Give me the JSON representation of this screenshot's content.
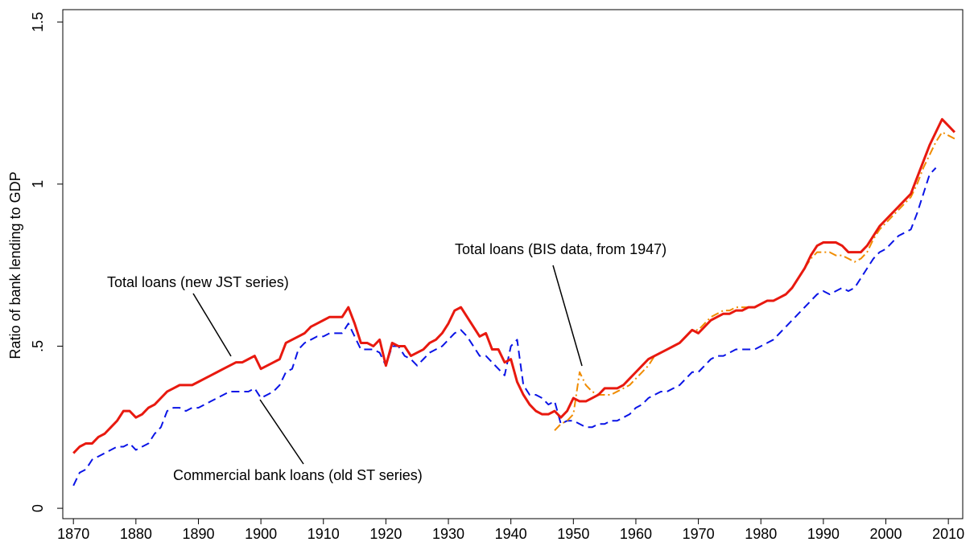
{
  "chart_data": {
    "type": "line",
    "y_label": "Ratio of bank lending to GDP",
    "xlim": [
      1868.3,
      2012.3
    ],
    "ylim": [
      -0.032,
      1.538
    ],
    "xticks": [
      1870,
      1880,
      1890,
      1900,
      1910,
      1920,
      1930,
      1940,
      1950,
      1960,
      1970,
      1980,
      1990,
      2000,
      2010
    ],
    "yticks": [
      0,
      {
        "value": 0.5,
        "label": ".5"
      },
      1,
      1.5
    ],
    "grid": false,
    "annotations": [
      "Total loans (new JST series)",
      "Commercial bank loans (old ST series)",
      "Total loans (BIS data, from 1947)"
    ],
    "x": [
      1870,
      1871,
      1872,
      1873,
      1874,
      1875,
      1876,
      1877,
      1878,
      1879,
      1880,
      1881,
      1882,
      1883,
      1884,
      1885,
      1886,
      1887,
      1888,
      1889,
      1890,
      1891,
      1892,
      1893,
      1894,
      1895,
      1896,
      1897,
      1898,
      1899,
      1900,
      1901,
      1902,
      1903,
      1904,
      1905,
      1906,
      1907,
      1908,
      1909,
      1910,
      1911,
      1912,
      1913,
      1914,
      1915,
      1916,
      1917,
      1918,
      1919,
      1920,
      1921,
      1922,
      1923,
      1924,
      1925,
      1926,
      1927,
      1928,
      1929,
      1930,
      1931,
      1932,
      1933,
      1934,
      1935,
      1936,
      1937,
      1938,
      1939,
      1940,
      1941,
      1942,
      1943,
      1944,
      1945,
      1946,
      1947,
      1948,
      1949,
      1950,
      1951,
      1952,
      1953,
      1954,
      1955,
      1956,
      1957,
      1958,
      1959,
      1960,
      1961,
      1962,
      1963,
      1964,
      1965,
      1966,
      1967,
      1968,
      1969,
      1970,
      1971,
      1972,
      1973,
      1974,
      1975,
      1976,
      1977,
      1978,
      1979,
      1980,
      1981,
      1982,
      1983,
      1984,
      1985,
      1986,
      1987,
      1988,
      1989,
      1990,
      1991,
      1992,
      1993,
      1994,
      1995,
      1996,
      1997,
      1998,
      1999,
      2000,
      2001,
      2002,
      2003,
      2004,
      2005,
      2006,
      2007,
      2008,
      2009,
      2010,
      2011
    ],
    "series": [
      {
        "color": "#0a14e6",
        "dash": "10,6",
        "values": [
          0.07,
          0.11,
          0.12,
          0.15,
          0.16,
          0.17,
          0.18,
          0.19,
          0.19,
          0.2,
          0.18,
          0.19,
          0.2,
          0.23,
          0.25,
          0.3,
          0.31,
          0.31,
          0.3,
          0.31,
          0.31,
          0.32,
          0.33,
          0.34,
          0.35,
          0.36,
          0.36,
          0.36,
          0.36,
          0.37,
          0.34,
          0.35,
          0.36,
          0.38,
          0.42,
          0.43,
          0.49,
          0.51,
          0.52,
          0.53,
          0.53,
          0.54,
          0.54,
          0.54,
          0.57,
          0.53,
          0.49,
          0.49,
          0.49,
          0.48,
          0.44,
          0.5,
          0.5,
          0.47,
          0.46,
          0.44,
          0.46,
          0.48,
          0.49,
          0.5,
          0.52,
          0.54,
          0.55,
          0.53,
          0.5,
          0.47,
          0.47,
          0.45,
          0.43,
          0.41,
          0.5,
          0.52,
          0.38,
          0.35,
          0.35,
          0.34,
          0.32,
          0.33,
          0.26,
          0.27,
          0.27,
          0.26,
          0.25,
          0.25,
          0.26,
          0.26,
          0.27,
          0.27,
          0.28,
          0.29,
          0.31,
          0.32,
          0.34,
          0.35,
          0.36,
          0.36,
          0.37,
          0.38,
          0.4,
          0.42,
          0.42,
          0.44,
          0.46,
          0.47,
          0.47,
          0.48,
          0.49,
          0.49,
          0.49,
          0.49,
          0.5,
          0.51,
          0.52,
          0.54,
          0.56,
          0.58,
          0.6,
          0.62,
          0.64,
          0.66,
          0.67,
          0.66,
          0.67,
          0.68,
          0.67,
          0.68,
          0.71,
          0.74,
          0.77,
          0.79,
          0.8,
          0.82,
          0.84,
          0.85,
          0.86,
          0.91,
          0.97,
          1.03,
          1.05,
          null,
          null,
          null
        ]
      },
      {
        "color": "#f08c00",
        "dash": "10,4,2,4",
        "values": [
          null,
          null,
          null,
          null,
          null,
          null,
          null,
          null,
          null,
          null,
          null,
          null,
          null,
          null,
          null,
          null,
          null,
          null,
          null,
          null,
          null,
          null,
          null,
          null,
          null,
          null,
          null,
          null,
          null,
          null,
          null,
          null,
          null,
          null,
          null,
          null,
          null,
          null,
          null,
          null,
          null,
          null,
          null,
          null,
          null,
          null,
          null,
          null,
          null,
          null,
          null,
          null,
          null,
          null,
          null,
          null,
          null,
          null,
          null,
          null,
          null,
          null,
          null,
          null,
          null,
          null,
          null,
          null,
          null,
          null,
          null,
          null,
          null,
          null,
          null,
          null,
          null,
          0.24,
          0.26,
          0.27,
          0.29,
          0.42,
          0.38,
          0.36,
          0.35,
          0.35,
          0.35,
          0.36,
          0.37,
          0.38,
          0.4,
          0.42,
          0.44,
          0.47,
          0.48,
          0.49,
          0.5,
          0.51,
          0.53,
          0.55,
          0.55,
          0.57,
          0.59,
          0.6,
          0.61,
          0.61,
          0.62,
          0.62,
          0.62,
          0.62,
          0.63,
          0.64,
          0.64,
          0.65,
          0.66,
          0.68,
          0.71,
          0.74,
          0.77,
          0.79,
          0.79,
          0.79,
          0.78,
          0.78,
          0.77,
          0.76,
          0.77,
          0.79,
          0.83,
          0.86,
          0.88,
          0.9,
          0.92,
          0.94,
          0.96,
          1.0,
          1.05,
          1.09,
          1.13,
          1.16,
          1.15,
          1.14
        ]
      },
      {
        "color": "#e8190f",
        "width": 3,
        "values": [
          0.17,
          0.19,
          0.2,
          0.2,
          0.22,
          0.23,
          0.25,
          0.27,
          0.3,
          0.3,
          0.28,
          0.29,
          0.31,
          0.32,
          0.34,
          0.36,
          0.37,
          0.38,
          0.38,
          0.38,
          0.39,
          0.4,
          0.41,
          0.42,
          0.43,
          0.44,
          0.45,
          0.45,
          0.46,
          0.47,
          0.43,
          0.44,
          0.45,
          0.46,
          0.51,
          0.52,
          0.53,
          0.54,
          0.56,
          0.57,
          0.58,
          0.59,
          0.59,
          0.59,
          0.62,
          0.57,
          0.51,
          0.51,
          0.5,
          0.52,
          0.44,
          0.51,
          0.5,
          0.5,
          0.47,
          0.48,
          0.49,
          0.51,
          0.52,
          0.54,
          0.57,
          0.61,
          0.62,
          0.59,
          0.56,
          0.53,
          0.54,
          0.49,
          0.49,
          0.45,
          0.46,
          0.39,
          0.35,
          0.32,
          0.3,
          0.29,
          0.29,
          0.3,
          0.28,
          0.3,
          0.34,
          0.33,
          0.33,
          0.34,
          0.35,
          0.37,
          0.37,
          0.37,
          0.38,
          0.4,
          0.42,
          0.44,
          0.46,
          0.47,
          0.48,
          0.49,
          0.5,
          0.51,
          0.53,
          0.55,
          0.54,
          0.56,
          0.58,
          0.59,
          0.6,
          0.6,
          0.61,
          0.61,
          0.62,
          0.62,
          0.63,
          0.64,
          0.64,
          0.65,
          0.66,
          0.68,
          0.71,
          0.74,
          0.78,
          0.81,
          0.82,
          0.82,
          0.82,
          0.81,
          0.79,
          0.79,
          0.79,
          0.81,
          0.84,
          0.87,
          0.89,
          0.91,
          0.93,
          0.95,
          0.97,
          1.02,
          1.07,
          1.12,
          1.16,
          1.2,
          1.18,
          1.16
        ]
      }
    ]
  }
}
